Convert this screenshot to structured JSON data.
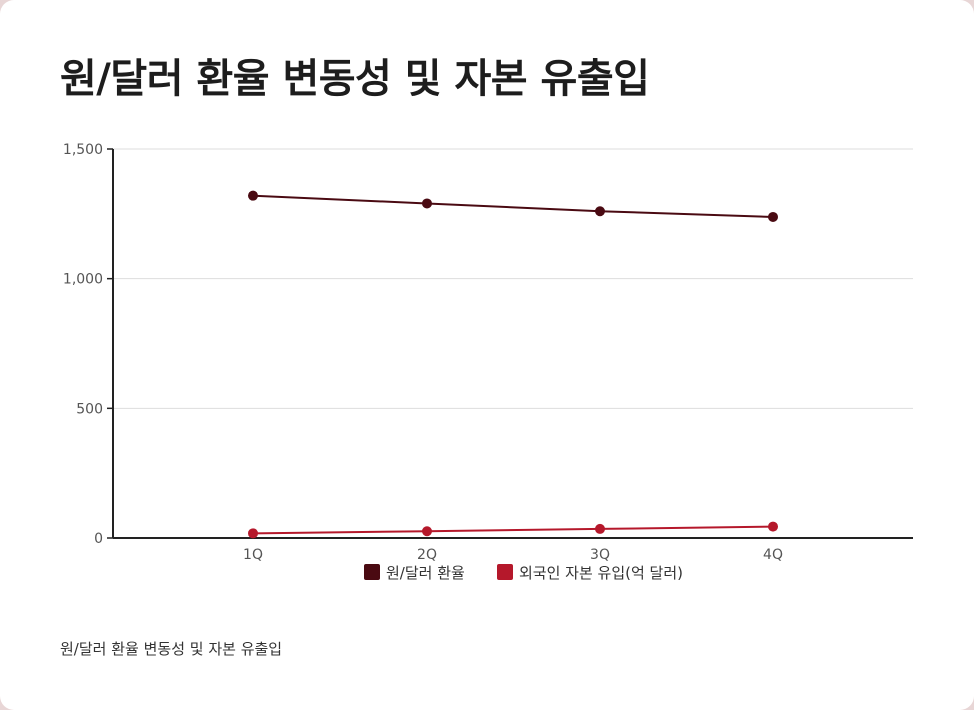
{
  "page": {
    "title": "원/달러 환율 변동성 및 자본 유출입",
    "caption": "원/달러 환율 변동성 및 자본 유출입"
  },
  "chart_data": {
    "type": "line",
    "title": "원/달러 환율 변동성 및 자본 유출입",
    "categories": [
      "1Q",
      "2Q",
      "3Q",
      "4Q"
    ],
    "ylim": [
      0,
      1500
    ],
    "yticks": [
      0,
      500,
      1000,
      1500
    ],
    "ytick_labels": [
      "0",
      "500",
      "1,000",
      "1,500"
    ],
    "grid": true,
    "legend_position": "bottom",
    "series": [
      {
        "name": "원/달러 환율",
        "color": "#4a0a12",
        "values": [
          1320,
          1290,
          1260,
          1238
        ]
      },
      {
        "name": "외국인 자본 유입(억 달러)",
        "color": "#b5182b",
        "values": [
          18,
          26,
          35,
          44
        ]
      }
    ]
  }
}
